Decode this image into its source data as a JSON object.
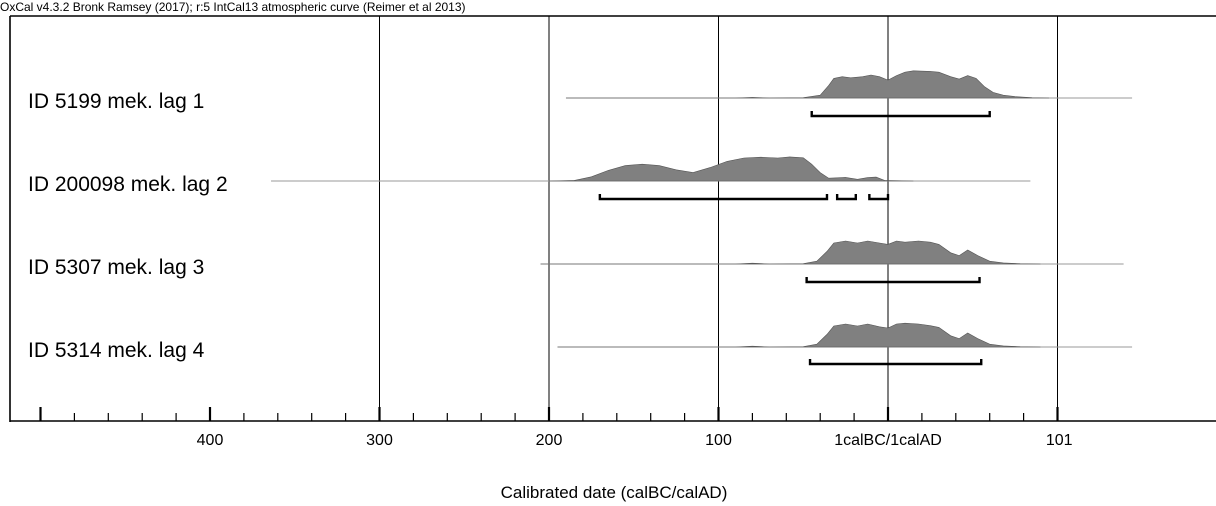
{
  "credit": "OxCal v4.3.2 Bronk Ramsey (2017); r:5 IntCal13 atmospheric curve (Reimer et al 2013)",
  "chart_data": {
    "type": "area",
    "title": "",
    "xlabel": "Calibrated date (calBC/calAD)",
    "ylabel": "",
    "grid": true,
    "x_axis_note": "years BC negative, AD positive; BC values printed without sign",
    "xlim": [
      -592,
      118
    ],
    "ticks": [
      {
        "value": -400,
        "label": "400"
      },
      {
        "value": -300,
        "label": "300"
      },
      {
        "value": -200,
        "label": "200"
      },
      {
        "value": -100,
        "label": "100"
      },
      {
        "value": 0,
        "label": "1calBC/1calAD"
      },
      {
        "value": 101,
        "label": "101"
      }
    ],
    "major_ticks": [
      -500,
      -400,
      -300,
      -200,
      -100,
      0,
      100
    ],
    "minor_tick_step": 20,
    "gridlines": [
      -300,
      -200,
      -100,
      0,
      100
    ],
    "series": [
      {
        "name": "ID 5199 mek. lag 1",
        "line": [
          -190,
          144
        ],
        "range_95": [
          [
            -45,
            60
          ]
        ],
        "density": [
          [
            -190,
            0
          ],
          [
            -90,
            0
          ],
          [
            -80,
            0.02
          ],
          [
            -70,
            0
          ],
          [
            -50,
            0.01
          ],
          [
            -40,
            0.1
          ],
          [
            -35,
            0.45
          ],
          [
            -32,
            0.7
          ],
          [
            -27,
            0.76
          ],
          [
            -22,
            0.72
          ],
          [
            -15,
            0.76
          ],
          [
            -10,
            0.82
          ],
          [
            -5,
            0.76
          ],
          [
            0,
            0.64
          ],
          [
            5,
            0.8
          ],
          [
            10,
            0.92
          ],
          [
            15,
            0.97
          ],
          [
            25,
            0.95
          ],
          [
            30,
            0.92
          ],
          [
            37,
            0.76
          ],
          [
            42,
            0.68
          ],
          [
            47,
            0.8
          ],
          [
            52,
            0.7
          ],
          [
            57,
            0.4
          ],
          [
            62,
            0.2
          ],
          [
            68,
            0.1
          ],
          [
            75,
            0.05
          ],
          [
            85,
            0.01
          ],
          [
            95,
            0
          ]
        ]
      },
      {
        "name": "ID 200098 mek. lag 2",
        "line": [
          -364,
          84
        ],
        "range_95": [
          [
            -170,
            -36
          ],
          [
            -30,
            -19
          ],
          [
            -11,
            0
          ]
        ],
        "density": [
          [
            -200,
            0
          ],
          [
            -185,
            0.02
          ],
          [
            -175,
            0.15
          ],
          [
            -165,
            0.38
          ],
          [
            -155,
            0.55
          ],
          [
            -145,
            0.6
          ],
          [
            -135,
            0.55
          ],
          [
            -125,
            0.4
          ],
          [
            -115,
            0.3
          ],
          [
            -105,
            0.48
          ],
          [
            -95,
            0.7
          ],
          [
            -85,
            0.82
          ],
          [
            -75,
            0.85
          ],
          [
            -65,
            0.82
          ],
          [
            -58,
            0.86
          ],
          [
            -50,
            0.83
          ],
          [
            -45,
            0.6
          ],
          [
            -40,
            0.3
          ],
          [
            -35,
            0.1
          ],
          [
            -25,
            0.13
          ],
          [
            -18,
            0.06
          ],
          [
            -12,
            0.12
          ],
          [
            -7,
            0.14
          ],
          [
            -2,
            0.02
          ],
          [
            5,
            0.01
          ],
          [
            15,
            0
          ]
        ]
      },
      {
        "name": "ID 5307 mek. lag 3",
        "line": [
          -205,
          139
        ],
        "range_95": [
          [
            -48,
            54
          ]
        ],
        "density": [
          [
            -205,
            0
          ],
          [
            -90,
            0
          ],
          [
            -80,
            0.03
          ],
          [
            -70,
            0
          ],
          [
            -50,
            0.01
          ],
          [
            -42,
            0.1
          ],
          [
            -36,
            0.45
          ],
          [
            -32,
            0.75
          ],
          [
            -25,
            0.82
          ],
          [
            -18,
            0.75
          ],
          [
            -12,
            0.82
          ],
          [
            -5,
            0.75
          ],
          [
            0,
            0.7
          ],
          [
            5,
            0.82
          ],
          [
            10,
            0.78
          ],
          [
            18,
            0.82
          ],
          [
            25,
            0.78
          ],
          [
            30,
            0.7
          ],
          [
            37,
            0.4
          ],
          [
            42,
            0.3
          ],
          [
            47,
            0.5
          ],
          [
            53,
            0.3
          ],
          [
            60,
            0.1
          ],
          [
            68,
            0.04
          ],
          [
            78,
            0.01
          ],
          [
            90,
            0
          ]
        ]
      },
      {
        "name": "ID 5314 mek. lag 4",
        "line": [
          -195,
          144
        ],
        "range_95": [
          [
            -46,
            55
          ]
        ],
        "density": [
          [
            -195,
            0
          ],
          [
            -90,
            0
          ],
          [
            -80,
            0.03
          ],
          [
            -70,
            0
          ],
          [
            -50,
            0.01
          ],
          [
            -42,
            0.1
          ],
          [
            -36,
            0.45
          ],
          [
            -32,
            0.75
          ],
          [
            -25,
            0.82
          ],
          [
            -18,
            0.75
          ],
          [
            -12,
            0.82
          ],
          [
            -5,
            0.72
          ],
          [
            0,
            0.68
          ],
          [
            5,
            0.82
          ],
          [
            10,
            0.85
          ],
          [
            18,
            0.82
          ],
          [
            25,
            0.76
          ],
          [
            30,
            0.7
          ],
          [
            37,
            0.4
          ],
          [
            42,
            0.3
          ],
          [
            47,
            0.5
          ],
          [
            53,
            0.3
          ],
          [
            60,
            0.1
          ],
          [
            68,
            0.04
          ],
          [
            78,
            0.01
          ],
          [
            90,
            0
          ]
        ]
      }
    ]
  }
}
